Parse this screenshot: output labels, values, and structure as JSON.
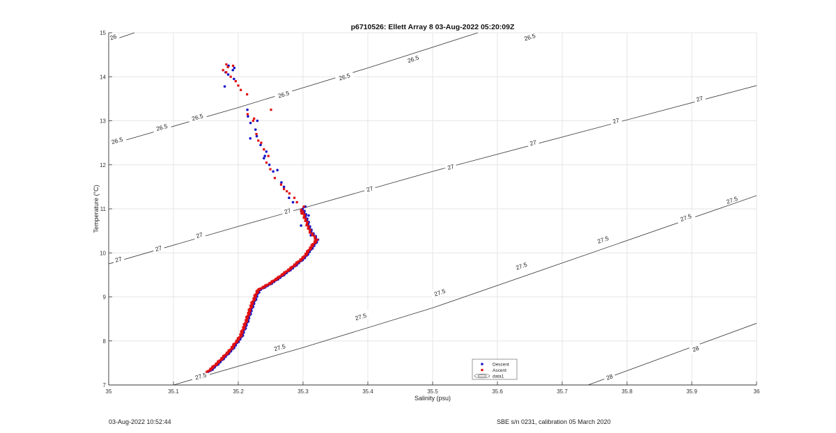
{
  "chart_data": {
    "type": "scatter",
    "title": "p6710526: Ellett Array 8 03-Aug-2022 05:20:09Z",
    "xlabel": "Salinity (psu)",
    "ylabel": "Temperature (°C)",
    "xlim": [
      35,
      36
    ],
    "ylim": [
      7,
      15
    ],
    "xticks": [
      "35",
      "35.1",
      "35.2",
      "35.3",
      "35.4",
      "35.5",
      "35.6",
      "35.7",
      "35.8",
      "35.9",
      "36"
    ],
    "yticks": [
      "7",
      "8",
      "9",
      "10",
      "11",
      "12",
      "13",
      "14",
      "15"
    ],
    "grid": true,
    "legend": {
      "placement": "bottom-center",
      "entries": [
        "Descent",
        "Ascent",
        "data1"
      ]
    },
    "colors": {
      "descent": "#1414c8",
      "ascent": "#e01010",
      "contour": "#333333",
      "grid": "#e6e6e6"
    },
    "contours": [
      {
        "label": "26",
        "points": [
          [
            35.0,
            14.8
          ],
          [
            35.04,
            15.0
          ]
        ],
        "label_at": [
          [
            35.007,
            14.9
          ]
        ]
      },
      {
        "label": "26.5",
        "points": [
          [
            35.0,
            12.45
          ],
          [
            35.2,
            13.3
          ],
          [
            35.4,
            14.2
          ],
          [
            35.57,
            15.0
          ]
        ],
        "label_at": [
          [
            35.013,
            12.55
          ],
          [
            35.082,
            12.85
          ],
          [
            35.137,
            13.08
          ],
          [
            35.27,
            13.6
          ],
          [
            35.364,
            14.0
          ],
          [
            35.47,
            14.4
          ],
          [
            35.65,
            14.9
          ]
        ]
      },
      {
        "label": "27",
        "points": [
          [
            35.0,
            9.75
          ],
          [
            35.2,
            10.6
          ],
          [
            35.5,
            11.85
          ],
          [
            36.0,
            13.8
          ]
        ],
        "label_at": [
          [
            35.015,
            9.85
          ],
          [
            35.077,
            10.1
          ],
          [
            35.14,
            10.4
          ],
          [
            35.276,
            10.95
          ],
          [
            35.403,
            11.45
          ],
          [
            35.528,
            11.95
          ],
          [
            35.655,
            12.5
          ],
          [
            35.783,
            13.0
          ],
          [
            35.912,
            13.5
          ]
        ]
      },
      {
        "label": "27.5",
        "points": [
          [
            35.1,
            7.0
          ],
          [
            35.3,
            7.85
          ],
          [
            35.5,
            8.75
          ],
          [
            36.0,
            11.3
          ]
        ],
        "label_at": [
          [
            35.142,
            7.2
          ],
          [
            35.264,
            7.85
          ],
          [
            35.389,
            8.55
          ],
          [
            35.511,
            9.1
          ],
          [
            35.637,
            9.7
          ],
          [
            35.763,
            10.3
          ],
          [
            35.891,
            10.8
          ],
          [
            35.962,
            11.2
          ]
        ]
      },
      {
        "label": "28",
        "points": [
          [
            35.74,
            7.0
          ],
          [
            36.0,
            8.4
          ]
        ],
        "label_at": [
          [
            35.773,
            7.18
          ],
          [
            35.906,
            7.82
          ]
        ]
      }
    ],
    "series": [
      {
        "name": "Descent",
        "marker": "circle",
        "profile": [
          [
            35.155,
            7.3
          ],
          [
            35.17,
            7.5
          ],
          [
            35.19,
            7.8
          ],
          [
            35.205,
            8.1
          ],
          [
            35.213,
            8.4
          ],
          [
            35.222,
            8.8
          ],
          [
            35.232,
            9.15
          ],
          [
            35.25,
            9.3
          ],
          [
            35.265,
            9.45
          ],
          [
            35.283,
            9.65
          ],
          [
            35.303,
            9.9
          ],
          [
            35.318,
            10.2
          ],
          [
            35.322,
            10.3
          ],
          [
            35.312,
            10.5
          ],
          [
            35.306,
            10.75
          ],
          [
            35.3,
            11.0
          ]
        ],
        "scatter": [
          [
            35.303,
            11.05
          ],
          [
            35.307,
            10.85
          ],
          [
            35.298,
            10.62
          ],
          [
            35.312,
            10.4
          ],
          [
            35.296,
            10.95
          ],
          [
            35.28,
            11.25
          ],
          [
            35.285,
            11.15
          ],
          [
            35.27,
            11.5
          ],
          [
            35.265,
            11.6
          ],
          [
            35.255,
            11.85
          ],
          [
            35.248,
            12.0
          ],
          [
            35.24,
            12.2
          ],
          [
            35.245,
            12.3
          ],
          [
            35.235,
            12.45
          ],
          [
            35.228,
            12.65
          ],
          [
            35.225,
            12.8
          ],
          [
            35.22,
            12.95
          ],
          [
            35.215,
            13.1
          ],
          [
            35.213,
            13.25
          ],
          [
            35.195,
            13.95
          ],
          [
            35.185,
            14.05
          ],
          [
            35.18,
            14.1
          ],
          [
            35.19,
            14.15
          ],
          [
            35.195,
            14.2
          ],
          [
            35.185,
            14.25
          ],
          [
            35.178,
            13.78
          ],
          [
            35.262,
            11.88
          ],
          [
            35.23,
            13.0
          ],
          [
            35.218,
            12.6
          ],
          [
            35.238,
            12.15
          ]
        ]
      },
      {
        "name": "Ascent",
        "marker": "square",
        "profile": [
          [
            35.153,
            7.3
          ],
          [
            35.168,
            7.5
          ],
          [
            35.188,
            7.8
          ],
          [
            35.203,
            8.1
          ],
          [
            35.211,
            8.4
          ],
          [
            35.22,
            8.8
          ],
          [
            35.23,
            9.15
          ],
          [
            35.248,
            9.3
          ],
          [
            35.263,
            9.45
          ],
          [
            35.281,
            9.65
          ],
          [
            35.301,
            9.9
          ],
          [
            35.316,
            10.2
          ],
          [
            35.321,
            10.3
          ],
          [
            35.31,
            10.5
          ],
          [
            35.304,
            10.75
          ],
          [
            35.298,
            10.98
          ]
        ],
        "scatter": [
          [
            35.29,
            11.15
          ],
          [
            35.285,
            11.25
          ],
          [
            35.28,
            11.35
          ],
          [
            35.275,
            11.4
          ],
          [
            35.265,
            11.55
          ],
          [
            35.258,
            11.7
          ],
          [
            35.25,
            11.9
          ],
          [
            35.243,
            12.05
          ],
          [
            35.238,
            12.35
          ],
          [
            35.232,
            12.55
          ],
          [
            35.228,
            12.7
          ],
          [
            35.222,
            13.0
          ],
          [
            35.216,
            13.15
          ],
          [
            35.225,
            13.05
          ],
          [
            35.25,
            13.25
          ],
          [
            35.212,
            13.6
          ],
          [
            35.205,
            13.7
          ],
          [
            35.2,
            13.8
          ],
          [
            35.195,
            13.9
          ],
          [
            35.19,
            14.0
          ],
          [
            35.182,
            14.1
          ],
          [
            35.176,
            14.15
          ],
          [
            35.18,
            14.28
          ],
          [
            35.185,
            14.22
          ],
          [
            35.192,
            14.25
          ],
          [
            35.3,
            11.05
          ],
          [
            35.237,
            12.5
          ],
          [
            35.247,
            12.2
          ],
          [
            35.27,
            11.45
          ],
          [
            35.296,
            10.9
          ]
        ]
      }
    ]
  },
  "footer": {
    "left": "03-Aug-2022 10:52:44",
    "right": "SBE s/n 0231, calibration 05 March 2020"
  }
}
